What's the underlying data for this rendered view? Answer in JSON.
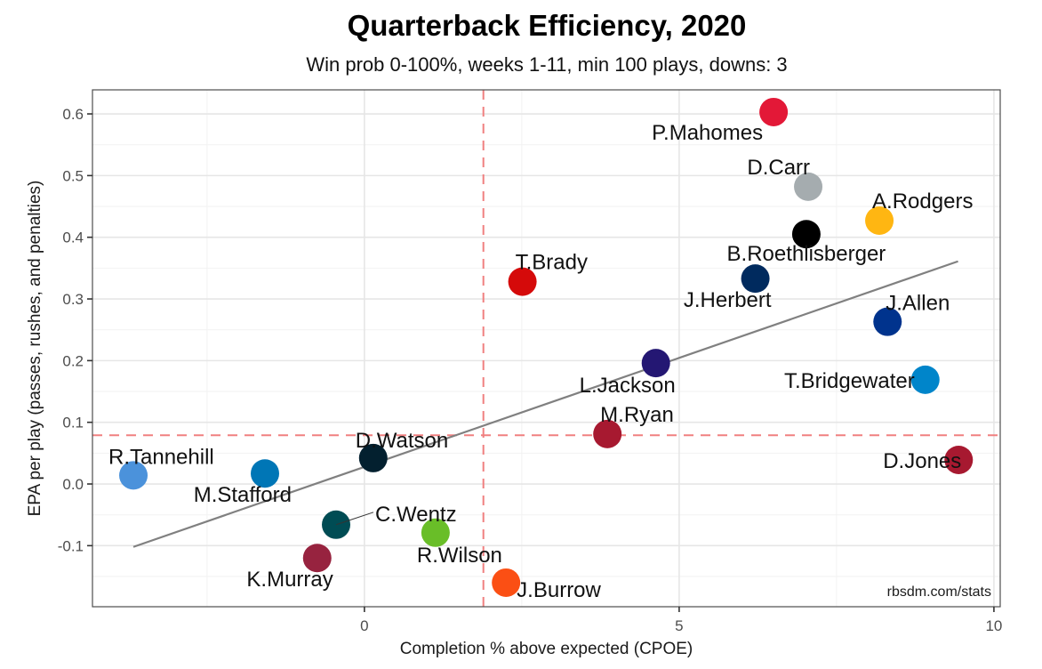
{
  "chart_data": {
    "type": "scatter",
    "title": "Quarterback Efficiency, 2020",
    "subtitle": "Win prob 0-100%, weeks 1-11, min 100 plays, downs: 3",
    "xlabel": "Completion % above expected (CPOE)",
    "ylabel": "EPA per play (passes, rushes, and penalties)",
    "caption": "rbsdm.com/stats",
    "xlim": [
      -4.32,
      10.1
    ],
    "ylim": [
      -0.199,
      0.639
    ],
    "x_ticks": [
      0,
      5,
      10
    ],
    "x_tick_labels": [
      "0",
      "5",
      "10"
    ],
    "x_minor_ticks": [
      -2.5,
      2.5,
      7.5
    ],
    "y_ticks": [
      -0.1,
      0.0,
      0.1,
      0.2,
      0.3,
      0.4,
      0.5,
      0.6
    ],
    "y_tick_labels": [
      "-0.1",
      "0.0",
      "0.1",
      "0.2",
      "0.3",
      "0.4",
      "0.5",
      "0.6"
    ],
    "y_minor_ticks": [
      -0.15,
      -0.05,
      0.05,
      0.15,
      0.25,
      0.35,
      0.45,
      0.55
    ],
    "grid": true,
    "reference_lines": {
      "vertical_x": 1.89,
      "horizontal_y": 0.079,
      "color": "#f08080",
      "style": "dashed"
    },
    "trend_line": {
      "x": [
        -3.67,
        9.43
      ],
      "y": [
        -0.102,
        0.361
      ],
      "color": "#808080"
    },
    "points": [
      {
        "name": "P.Mahomes",
        "x": 6.5,
        "y": 0.603,
        "color": "#e31837",
        "label_pos": "below-left"
      },
      {
        "name": "D.Carr",
        "x": 7.05,
        "y": 0.482,
        "color": "#a5acaf",
        "label_pos": "above-left"
      },
      {
        "name": "A.Rodgers",
        "x": 8.18,
        "y": 0.427,
        "color": "#ffb612",
        "label_pos": "above-right"
      },
      {
        "name": "B.Roethlisberger",
        "x": 7.02,
        "y": 0.405,
        "color": "#000000",
        "label_pos": "below"
      },
      {
        "name": "J.Herbert",
        "x": 6.21,
        "y": 0.333,
        "color": "#002a5e",
        "label_pos": "below-left"
      },
      {
        "name": "T.Brady",
        "x": 2.51,
        "y": 0.328,
        "color": "#d50a0a",
        "label_pos": "above-right"
      },
      {
        "name": "J.Allen",
        "x": 8.31,
        "y": 0.263,
        "color": "#00338d",
        "label_pos": "above-right"
      },
      {
        "name": "L.Jackson",
        "x": 4.63,
        "y": 0.196,
        "color": "#241773",
        "label_pos": "below-left"
      },
      {
        "name": "T.Bridgewater",
        "x": 8.91,
        "y": 0.169,
        "color": "#0085ca",
        "label_pos": "left"
      },
      {
        "name": "M.Ryan",
        "x": 3.86,
        "y": 0.081,
        "color": "#a71930",
        "label_pos": "above-right"
      },
      {
        "name": "D.Jones",
        "x": 9.44,
        "y": 0.039,
        "color": "#a71930",
        "label_pos": "left"
      },
      {
        "name": "D.Watson",
        "x": 0.14,
        "y": 0.042,
        "color": "#03202f",
        "label_pos": "above-right"
      },
      {
        "name": "R.Tannehill",
        "x": -3.67,
        "y": 0.014,
        "color": "#4b92db",
        "label_pos": "above-right"
      },
      {
        "name": "M.Stafford",
        "x": -1.58,
        "y": 0.017,
        "color": "#0076b6",
        "label_pos": "below-right"
      },
      {
        "name": "C.Wentz",
        "x": -0.45,
        "y": -0.066,
        "color": "#004c54",
        "label_pos": "right-leader"
      },
      {
        "name": "R.Wilson",
        "x": 1.13,
        "y": -0.079,
        "color": "#69be28",
        "label_pos": "below"
      },
      {
        "name": "K.Murray",
        "x": -0.75,
        "y": -0.12,
        "color": "#97233f",
        "label_pos": "below-left"
      },
      {
        "name": "J.Burrow",
        "x": 2.25,
        "y": -0.16,
        "color": "#fb4f14",
        "label_pos": "right"
      }
    ]
  }
}
